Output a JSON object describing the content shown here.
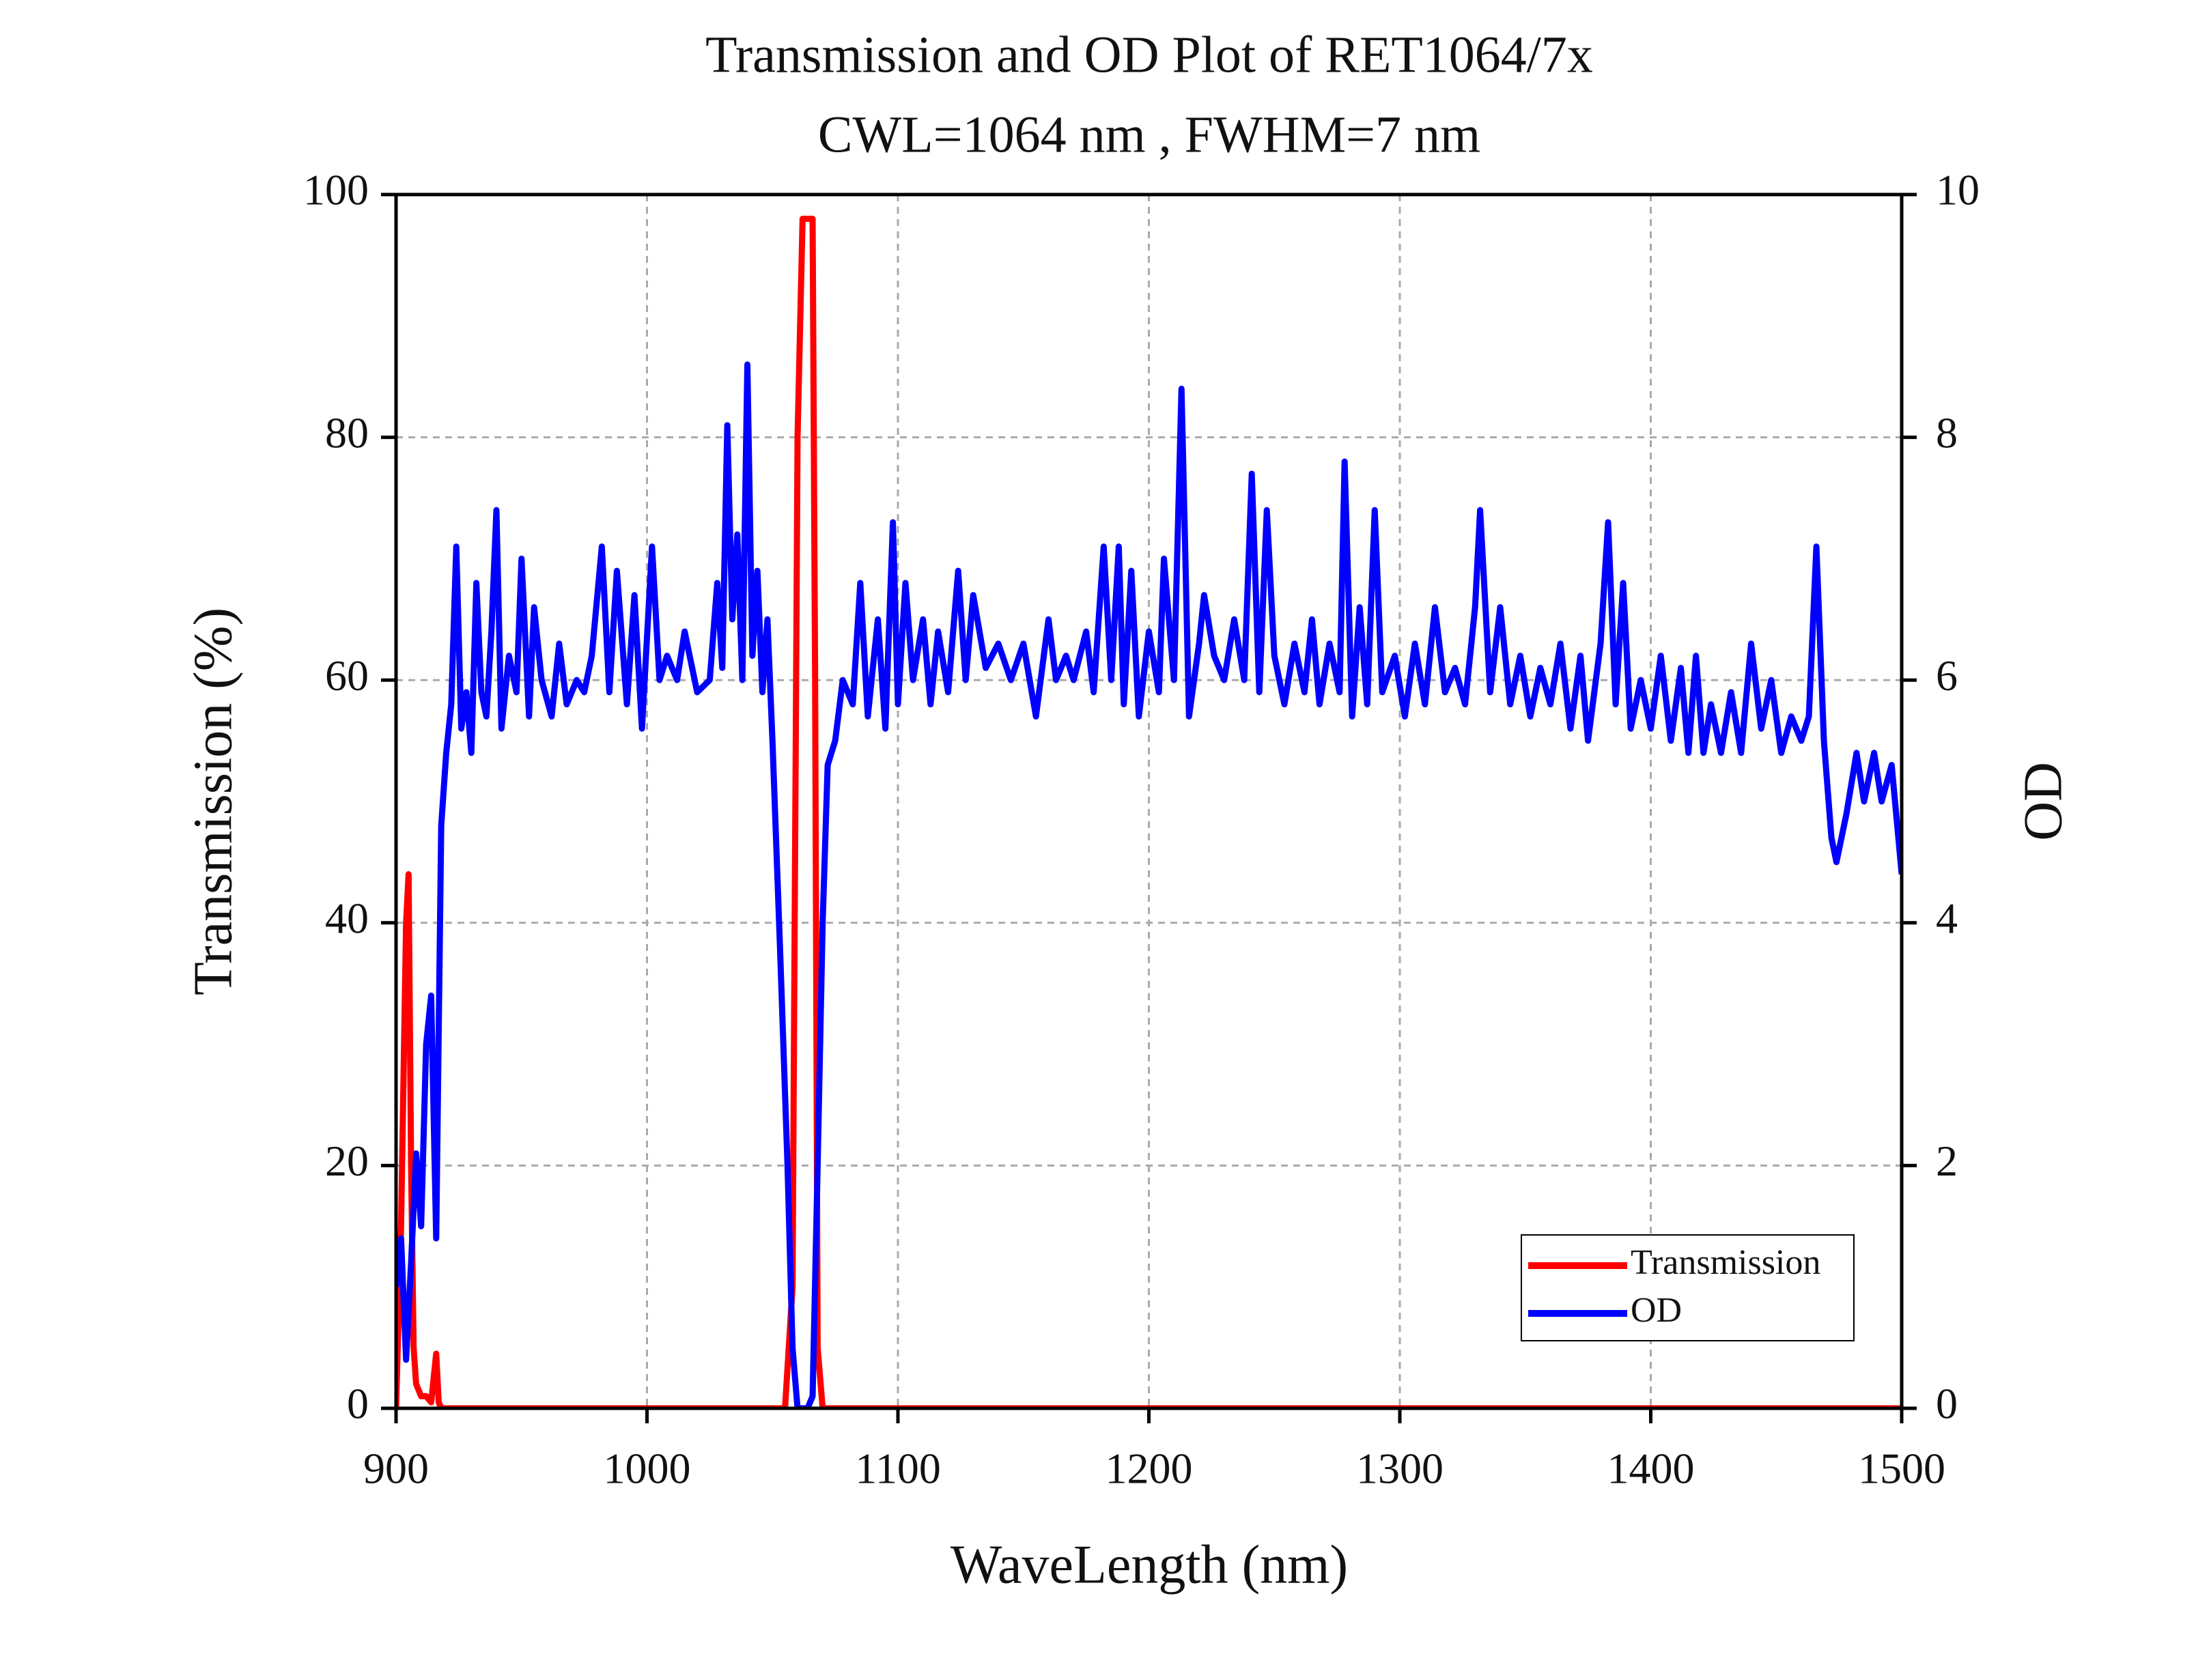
{
  "chart_data": {
    "type": "line",
    "title": "Transmission and OD Plot of RET1064/7x",
    "subtitle": "CWL=1064 nm , FWHM=7 nm",
    "x_label": "WaveLength (nm)",
    "y_label": "Transmission (%)",
    "y2_label": "OD",
    "xlim": [
      900,
      1500
    ],
    "xticks": [
      900,
      1000,
      1100,
      1200,
      1300,
      1400,
      1500
    ],
    "ylim": [
      0,
      100
    ],
    "yticks": [
      0,
      20,
      40,
      60,
      80,
      100
    ],
    "y2lim": [
      0,
      10
    ],
    "y2ticks": [
      0,
      2,
      4,
      6,
      8,
      10
    ],
    "grid": true,
    "legend": "lower right",
    "series": [
      {
        "name": "Transmission",
        "color": "#ff0000",
        "x": [
          900,
          902,
          904,
          905,
          906,
          907,
          908,
          910,
          912,
          914,
          916,
          917,
          918,
          1000,
          1055,
          1058,
          1060,
          1062,
          1064,
          1066,
          1067,
          1068,
          1070,
          1100,
          1500
        ],
        "values": [
          0,
          15,
          40,
          44,
          20,
          5,
          2,
          1,
          1,
          0.5,
          4.5,
          0.5,
          0,
          0,
          0,
          10,
          80,
          98,
          98,
          98,
          60,
          5,
          0,
          0,
          0
        ]
      },
      {
        "name": "OD",
        "color": "#0000ff",
        "axis": "y2",
        "x": [
          900,
          902,
          904,
          906,
          908,
          910,
          912,
          914,
          916,
          918,
          920,
          922,
          924,
          926,
          928,
          930,
          932,
          934,
          936,
          938,
          940,
          942,
          945,
          948,
          950,
          953,
          955,
          958,
          962,
          965,
          968,
          972,
          975,
          978,
          982,
          985,
          988,
          992,
          995,
          998,
          1002,
          1005,
          1008,
          1012,
          1015,
          1020,
          1025,
          1028,
          1030,
          1032,
          1034,
          1036,
          1038,
          1040,
          1042,
          1044,
          1046,
          1048,
          1050,
          1053,
          1056,
          1058,
          1060,
          1064,
          1066,
          1068,
          1070,
          1072,
          1075,
          1078,
          1082,
          1085,
          1088,
          1092,
          1095,
          1098,
          1100,
          1103,
          1106,
          1110,
          1113,
          1116,
          1120,
          1124,
          1127,
          1130,
          1135,
          1140,
          1145,
          1150,
          1155,
          1160,
          1163,
          1167,
          1170,
          1175,
          1178,
          1182,
          1185,
          1188,
          1190,
          1193,
          1196,
          1200,
          1204,
          1206,
          1210,
          1213,
          1216,
          1220,
          1222,
          1226,
          1230,
          1234,
          1238,
          1241,
          1244,
          1247,
          1250,
          1254,
          1258,
          1262,
          1265,
          1268,
          1272,
          1276,
          1278,
          1281,
          1284,
          1287,
          1290,
          1293,
          1298,
          1302,
          1306,
          1310,
          1314,
          1318,
          1322,
          1326,
          1330,
          1332,
          1336,
          1340,
          1344,
          1348,
          1352,
          1356,
          1360,
          1364,
          1368,
          1372,
          1375,
          1380,
          1383,
          1386,
          1389,
          1392,
          1396,
          1400,
          1404,
          1408,
          1412,
          1415,
          1418,
          1421,
          1424,
          1428,
          1432,
          1436,
          1440,
          1444,
          1448,
          1452,
          1456,
          1460,
          1463,
          1466,
          1469,
          1472,
          1474,
          1478,
          1482,
          1485,
          1489,
          1492,
          1496,
          1500
        ],
        "values": [
          1.0,
          1.4,
          0.4,
          1.2,
          2.1,
          1.5,
          3.0,
          3.4,
          1.4,
          4.8,
          5.4,
          5.8,
          7.1,
          5.6,
          5.9,
          5.4,
          6.8,
          5.9,
          5.7,
          6.4,
          7.4,
          5.6,
          6.2,
          5.9,
          7.0,
          5.7,
          6.6,
          6.0,
          5.7,
          6.3,
          5.8,
          6.0,
          5.9,
          6.2,
          7.1,
          5.9,
          6.9,
          5.8,
          6.7,
          5.6,
          7.1,
          6.0,
          6.2,
          6.0,
          6.4,
          5.9,
          6.0,
          6.8,
          6.1,
          8.1,
          6.5,
          7.2,
          6.0,
          8.6,
          6.2,
          6.9,
          5.9,
          6.5,
          5.5,
          3.8,
          2.0,
          0.5,
          0.0,
          0.0,
          0.1,
          2.0,
          4.0,
          5.3,
          5.5,
          6.0,
          5.8,
          6.8,
          5.7,
          6.5,
          5.6,
          7.3,
          5.8,
          6.8,
          6.0,
          6.5,
          5.8,
          6.4,
          5.9,
          6.9,
          6.0,
          6.7,
          6.1,
          6.3,
          6.0,
          6.3,
          5.7,
          6.5,
          6.0,
          6.2,
          6.0,
          6.4,
          5.9,
          7.1,
          6.0,
          7.1,
          5.8,
          6.9,
          5.7,
          6.4,
          5.9,
          7.0,
          6.0,
          8.4,
          5.7,
          6.3,
          6.7,
          6.2,
          6.0,
          6.5,
          6.0,
          7.7,
          5.9,
          7.4,
          6.2,
          5.8,
          6.3,
          5.9,
          6.5,
          5.8,
          6.3,
          5.9,
          7.8,
          5.7,
          6.6,
          5.8,
          7.4,
          5.9,
          6.2,
          5.7,
          6.3,
          5.8,
          6.6,
          5.9,
          6.1,
          5.8,
          6.6,
          7.4,
          5.9,
          6.6,
          5.8,
          6.2,
          5.7,
          6.1,
          5.8,
          6.3,
          5.6,
          6.2,
          5.5,
          6.3,
          7.3,
          5.8,
          6.8,
          5.6,
          6.0,
          5.6,
          6.2,
          5.5,
          6.1,
          5.4,
          6.2,
          5.4,
          5.8,
          5.4,
          5.9,
          5.4,
          6.3,
          5.6,
          6.0,
          5.4,
          5.7,
          5.5,
          5.7,
          7.1,
          5.5,
          4.7,
          4.5,
          4.9,
          5.4,
          5.0,
          5.4,
          5.0,
          5.3,
          4.4
        ]
      }
    ]
  }
}
